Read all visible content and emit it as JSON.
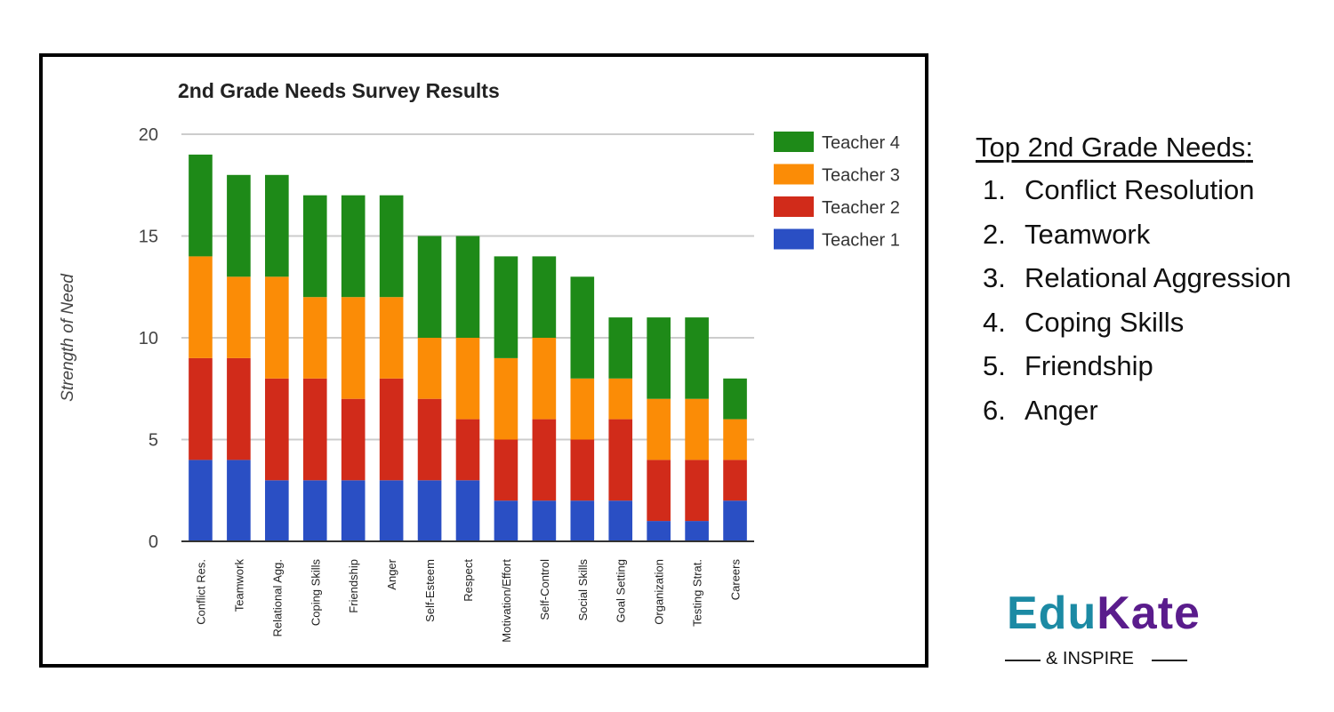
{
  "chart_data": {
    "type": "bar",
    "stacked": true,
    "title": "2nd Grade Needs Survey Results",
    "xlabel": "",
    "ylabel": "Strength of Need",
    "ylim": [
      0,
      20
    ],
    "yticks": [
      0,
      5,
      10,
      15,
      20
    ],
    "grid": true,
    "legend_position": "right",
    "categories": [
      "Conflict Res.",
      "Teamwork",
      "Relational Agg.",
      "Coping Skills",
      "Friendship",
      "Anger",
      "Self-Esteem",
      "Respect",
      "Motivation/Effort",
      "Self-Control",
      "Social Skills",
      "Goal Setting",
      "Organization",
      "Testing Strat.",
      "Careers"
    ],
    "series": [
      {
        "name": "Teacher 1",
        "color": "#2a4fc4",
        "values": [
          4,
          4,
          3,
          3,
          3,
          3,
          3,
          3,
          2,
          2,
          2,
          2,
          1,
          1,
          2
        ]
      },
      {
        "name": "Teacher 2",
        "color": "#d12b1a",
        "values": [
          5,
          5,
          5,
          5,
          4,
          5,
          4,
          3,
          3,
          4,
          3,
          4,
          3,
          3,
          2
        ]
      },
      {
        "name": "Teacher 3",
        "color": "#fb8c06",
        "values": [
          5,
          4,
          5,
          4,
          5,
          4,
          3,
          4,
          4,
          4,
          3,
          2,
          3,
          3,
          2
        ]
      },
      {
        "name": "Teacher 4",
        "color": "#1e8a18",
        "values": [
          5,
          5,
          5,
          5,
          5,
          5,
          5,
          5,
          5,
          4,
          5,
          3,
          4,
          4,
          2
        ]
      }
    ],
    "legend_order": [
      "Teacher 4",
      "Teacher 3",
      "Teacher 2",
      "Teacher 1"
    ]
  },
  "needs_panel": {
    "title": "Top 2nd Grade Needs",
    "title_suffix": ":",
    "items": [
      {
        "num": "1.",
        "label": "Conflict Resolution"
      },
      {
        "num": "2.",
        "label": "Teamwork"
      },
      {
        "num": "3.",
        "label": "Relational Aggression"
      },
      {
        "num": "4.",
        "label": "Coping Skills"
      },
      {
        "num": "5.",
        "label": "Friendship"
      },
      {
        "num": "6.",
        "label": "Anger"
      }
    ]
  },
  "logo": {
    "part1": "Edu",
    "part2": "Kate",
    "tagline": "& INSPIRE",
    "color1": "#1c8aa4",
    "color2": "#5a1c8c"
  }
}
